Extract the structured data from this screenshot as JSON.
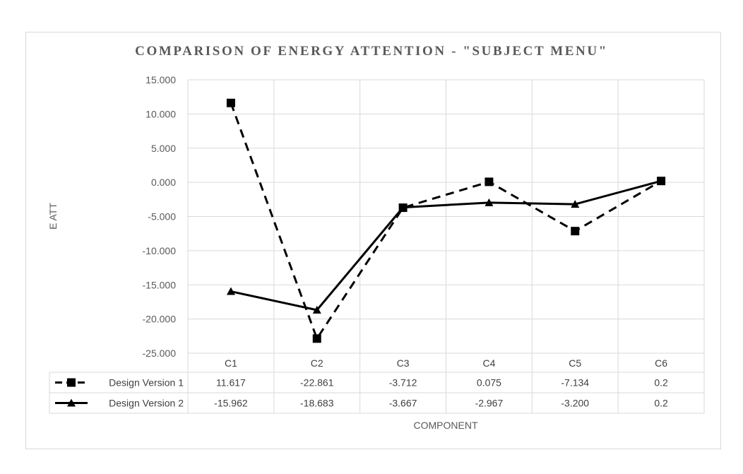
{
  "chart_data": {
    "type": "line",
    "title": "COMPARISON OF ENERGY ATTENTION - \"SUBJECT MENU\"",
    "xlabel": "COMPONENT",
    "ylabel": "E ATT",
    "categories": [
      "C1",
      "C2",
      "C3",
      "C4",
      "C5",
      "C6"
    ],
    "ylim": [
      -25,
      15
    ],
    "yticks": [
      "15.000",
      "10.000",
      "5.000",
      "0.000",
      "-5.000",
      "-10.000",
      "-15.000",
      "-20.000",
      "-25.000"
    ],
    "grid": true,
    "legend_position": "bottom data table",
    "series": [
      {
        "name": "Design Version 1",
        "marker": "square",
        "line": "dashed",
        "values": [
          11.617,
          -22.861,
          -3.712,
          0.075,
          -7.134,
          0.2
        ],
        "labels": [
          "11.617",
          "-22.861",
          "-3.712",
          "0.075",
          "-7.134",
          "0.2"
        ]
      },
      {
        "name": "Design Version 2",
        "marker": "triangle",
        "line": "solid",
        "values": [
          -15.962,
          -18.683,
          -3.667,
          -2.967,
          -3.2,
          0.2
        ],
        "labels": [
          "-15.962",
          "-18.683",
          "-3.667",
          "-2.967",
          "-3.200",
          "0.2"
        ]
      }
    ],
    "colors": {
      "series": "#000000",
      "grid": "#d9d9d9",
      "text": "#595959"
    }
  }
}
